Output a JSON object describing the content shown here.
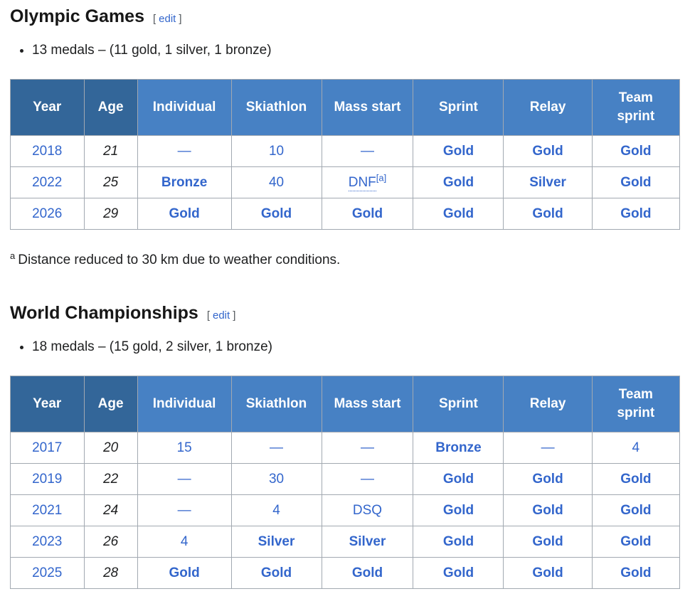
{
  "colors": {
    "header_dark": "#336699",
    "header_light": "#4781c4",
    "gold": "#ffd608",
    "silver": "#c0c0c0",
    "bronze": "#c8945f",
    "link": "#3366cc",
    "border": "#a2a9b1",
    "text": "#202122"
  },
  "sections": [
    {
      "id": "olympic-games",
      "heading": "Olympic Games",
      "edit": {
        "open": "[",
        "label": "edit",
        "close": "]"
      },
      "summary": "13 medals – (11 gold, 1 silver, 1 bronze)",
      "columns": [
        "Year",
        "Age",
        "Individual",
        "Skiathlon",
        "Mass start",
        "Sprint",
        "Relay",
        "Team sprint"
      ],
      "rows": [
        [
          {
            "t": "year",
            "v": "2018"
          },
          {
            "t": "age",
            "v": "21"
          },
          {
            "t": "dash",
            "v": "—"
          },
          {
            "t": "num",
            "v": "10"
          },
          {
            "t": "dash",
            "v": "—"
          },
          {
            "t": "medal",
            "medal": "gold",
            "v": "Gold"
          },
          {
            "t": "medal",
            "medal": "gold",
            "v": "Gold"
          },
          {
            "t": "medal",
            "medal": "gold",
            "v": "Gold"
          }
        ],
        [
          {
            "t": "year",
            "v": "2022"
          },
          {
            "t": "age",
            "v": "25"
          },
          {
            "t": "medal",
            "medal": "bronze",
            "v": "Bronze"
          },
          {
            "t": "num",
            "v": "40"
          },
          {
            "t": "dnf",
            "v": "DNF",
            "sup": "[a]"
          },
          {
            "t": "medal",
            "medal": "gold",
            "v": "Gold"
          },
          {
            "t": "medal",
            "medal": "silver",
            "v": "Silver"
          },
          {
            "t": "medal",
            "medal": "gold",
            "v": "Gold"
          }
        ],
        [
          {
            "t": "year",
            "v": "2026"
          },
          {
            "t": "age",
            "v": "29"
          },
          {
            "t": "medal",
            "medal": "gold",
            "v": "Gold"
          },
          {
            "t": "medal",
            "medal": "gold",
            "v": "Gold"
          },
          {
            "t": "medal",
            "medal": "gold",
            "v": "Gold"
          },
          {
            "t": "medal",
            "medal": "gold",
            "v": "Gold"
          },
          {
            "t": "medal",
            "medal": "gold",
            "v": "Gold"
          },
          {
            "t": "medal",
            "medal": "gold",
            "v": "Gold"
          }
        ]
      ],
      "footnote": {
        "marker": "a",
        "text": "Distance reduced to 30 km due to weather conditions."
      }
    },
    {
      "id": "world-championships",
      "heading": "World Championships",
      "edit": {
        "open": "[",
        "label": "edit",
        "close": "]"
      },
      "summary": "18 medals – (15 gold, 2 silver, 1 bronze)",
      "columns": [
        "Year",
        "Age",
        "Individual",
        "Skiathlon",
        "Mass start",
        "Sprint",
        "Relay",
        "Team sprint"
      ],
      "rows": [
        [
          {
            "t": "year",
            "v": "2017"
          },
          {
            "t": "age",
            "v": "20"
          },
          {
            "t": "num",
            "v": "15"
          },
          {
            "t": "dash",
            "v": "—"
          },
          {
            "t": "dash",
            "v": "—"
          },
          {
            "t": "medal",
            "medal": "bronze",
            "v": "Bronze"
          },
          {
            "t": "dash",
            "v": "—"
          },
          {
            "t": "num",
            "v": "4"
          }
        ],
        [
          {
            "t": "year",
            "v": "2019"
          },
          {
            "t": "age",
            "v": "22"
          },
          {
            "t": "dash",
            "v": "—"
          },
          {
            "t": "num",
            "v": "30"
          },
          {
            "t": "dash",
            "v": "—"
          },
          {
            "t": "medal",
            "medal": "gold",
            "v": "Gold"
          },
          {
            "t": "medal",
            "medal": "gold",
            "v": "Gold"
          },
          {
            "t": "medal",
            "medal": "gold",
            "v": "Gold"
          }
        ],
        [
          {
            "t": "year",
            "v": "2021"
          },
          {
            "t": "age",
            "v": "24"
          },
          {
            "t": "dash",
            "v": "—"
          },
          {
            "t": "num",
            "v": "4"
          },
          {
            "t": "dsq",
            "v": "DSQ"
          },
          {
            "t": "medal",
            "medal": "gold",
            "v": "Gold"
          },
          {
            "t": "medal",
            "medal": "gold",
            "v": "Gold"
          },
          {
            "t": "medal",
            "medal": "gold",
            "v": "Gold"
          }
        ],
        [
          {
            "t": "year",
            "v": "2023"
          },
          {
            "t": "age",
            "v": "26"
          },
          {
            "t": "num",
            "v": "4"
          },
          {
            "t": "medal",
            "medal": "silver",
            "v": "Silver"
          },
          {
            "t": "medal",
            "medal": "silver",
            "v": "Silver"
          },
          {
            "t": "medal",
            "medal": "gold",
            "v": "Gold"
          },
          {
            "t": "medal",
            "medal": "gold",
            "v": "Gold"
          },
          {
            "t": "medal",
            "medal": "gold",
            "v": "Gold"
          }
        ],
        [
          {
            "t": "year",
            "v": "2025"
          },
          {
            "t": "age",
            "v": "28"
          },
          {
            "t": "medal",
            "medal": "gold",
            "v": "Gold"
          },
          {
            "t": "medal",
            "medal": "gold",
            "v": "Gold"
          },
          {
            "t": "medal",
            "medal": "gold",
            "v": "Gold"
          },
          {
            "t": "medal",
            "medal": "gold",
            "v": "Gold"
          },
          {
            "t": "medal",
            "medal": "gold",
            "v": "Gold"
          },
          {
            "t": "medal",
            "medal": "gold",
            "v": "Gold"
          }
        ]
      ]
    }
  ]
}
